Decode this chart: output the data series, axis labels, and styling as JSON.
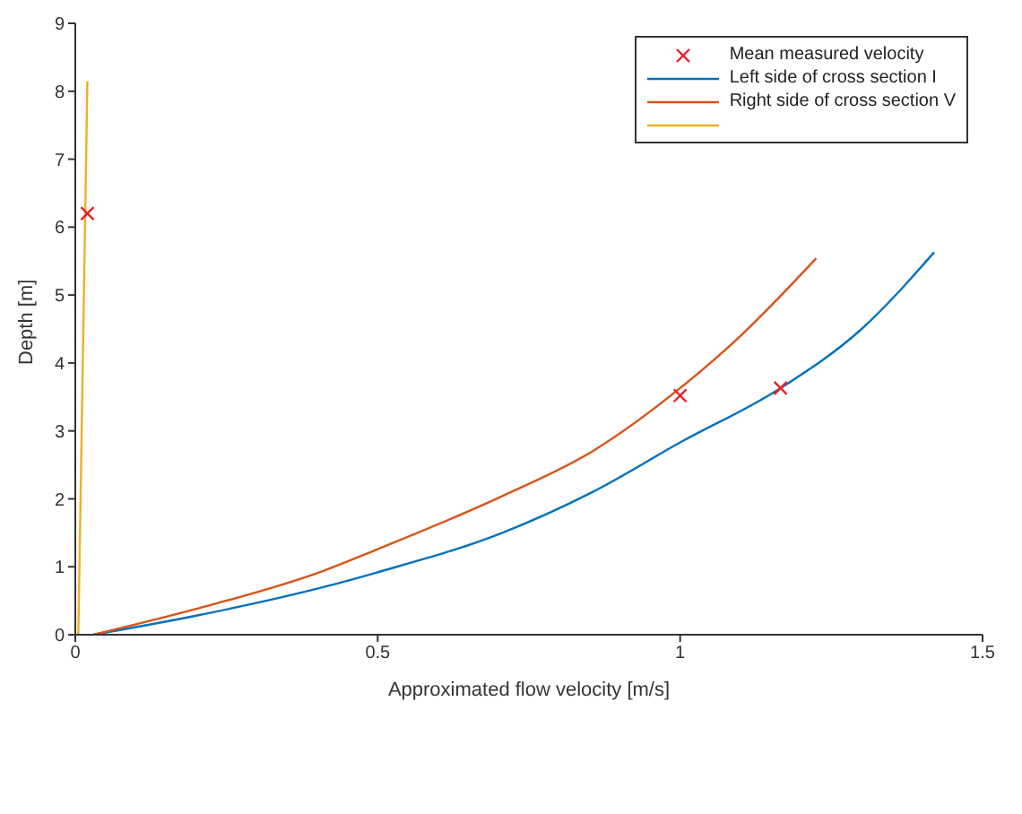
{
  "chart_data": {
    "type": "line",
    "xlabel": "Approximated flow velocity [m/s]",
    "ylabel": "Depth [m]",
    "xlim": [
      0,
      1.5
    ],
    "xticks": [
      0,
      0.5,
      1,
      1.5
    ],
    "ylim": [
      0,
      9
    ],
    "yticks": [
      0,
      1,
      2,
      3,
      4,
      5,
      6,
      7,
      8,
      9
    ],
    "grid": false,
    "legend": "top right",
    "series": [
      {
        "type": "scatter",
        "name": "Mean measured velocity",
        "color": "#e8202a",
        "marker": "cross",
        "x": [
          0.02,
          1.0,
          1.166
        ],
        "values": [
          6.2,
          3.52,
          3.63
        ]
      },
      {
        "name": "Left side of cross section I",
        "color": "#0072bd",
        "x": [
          0.03,
          0.2,
          0.41,
          0.5,
          0.706,
          0.855,
          1.0,
          1.166,
          1.3,
          1.42
        ],
        "values": [
          0,
          0.28,
          0.7,
          0.92,
          1.5,
          2.1,
          2.83,
          3.63,
          4.5,
          5.63
        ]
      },
      {
        "name": "Right side of cross section V",
        "color": "#d95319",
        "x": [
          0.03,
          0.2,
          0.41,
          0.5,
          0.706,
          0.855,
          1.0,
          1.1,
          1.225
        ],
        "values": [
          0,
          0.38,
          0.94,
          1.26,
          2.04,
          2.7,
          3.63,
          4.4,
          5.54
        ]
      },
      {
        "color": "#edb120",
        "x": [
          0.005,
          0.02
        ],
        "values": [
          0,
          8.15
        ]
      }
    ]
  }
}
